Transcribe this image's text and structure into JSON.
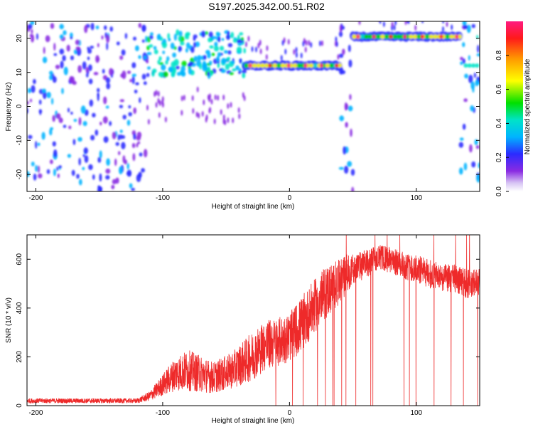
{
  "title": "S197.2025.342.00.51.R02",
  "colors": {
    "snr_line": "#ee2a2a",
    "colormap": [
      "#ffffff",
      "#d7c4f4",
      "#8a2be2",
      "#2b2bff",
      "#00b4ff",
      "#00e3c8",
      "#00e000",
      "#ffff00",
      "#ff9900",
      "#ff1a1a",
      "#ff1a80"
    ]
  },
  "chart_data": [
    {
      "type": "heatmap",
      "title": "S197.2025.342.00.51.R02",
      "xlabel": "Height of straight line (km)",
      "ylabel": "Frequency (Hz)",
      "xlim": [
        -207,
        150
      ],
      "ylim": [
        -25,
        25
      ],
      "xticks": [
        -200,
        -100,
        0,
        100
      ],
      "yticks": [
        20,
        10,
        0,
        -10,
        -20
      ],
      "colorbar": {
        "label": "Normalized spectral amplitude",
        "range": [
          0,
          1
        ],
        "ticks": [
          "0.0",
          "0.2",
          "0.4",
          "0.6",
          "0.8"
        ]
      },
      "bands": [
        {
          "x_start": -207,
          "x_end": -112,
          "pattern": "scattered noise over full frequency range",
          "amplitude": 0.25
        },
        {
          "x_start": -112,
          "x_end": -35,
          "pattern": "spread signal 10-20 Hz",
          "amplitude": 0.35
        },
        {
          "x_start": -35,
          "x_end": 40,
          "pattern": "narrow line near 12 Hz",
          "amplitude": 0.45
        },
        {
          "x_start": 40,
          "x_end": 50,
          "pattern": "scattered noise over full frequency range",
          "amplitude": 0.25
        },
        {
          "x_start": 50,
          "x_end": 135,
          "pattern": "narrow line near 20.5 Hz",
          "amplitude": 0.55
        },
        {
          "x_start": 135,
          "x_end": 150,
          "pattern": "scattered noise with line near 12 Hz",
          "amplitude": 0.3
        }
      ]
    },
    {
      "type": "line",
      "xlabel": "Height of straight line (km)",
      "ylabel": "SNR (10 * v/v)",
      "xlim": [
        -207,
        150
      ],
      "ylim": [
        0,
        700
      ],
      "xticks": [
        -200,
        -100,
        0,
        100
      ],
      "yticks": [
        0,
        200,
        400,
        600
      ],
      "series": [
        {
          "name": "SNR",
          "envelope_x": [
            -207,
            -120,
            -110,
            -90,
            -80,
            -60,
            -45,
            -30,
            -20,
            -10,
            0,
            10,
            20,
            30,
            40,
            45,
            50,
            60,
            70,
            80,
            90,
            100,
            110,
            120,
            130,
            140,
            150
          ],
          "envelope_low": [
            10,
            10,
            20,
            60,
            60,
            50,
            70,
            100,
            140,
            160,
            180,
            220,
            300,
            360,
            420,
            460,
            500,
            520,
            560,
            540,
            520,
            500,
            480,
            470,
            460,
            440,
            440
          ],
          "envelope_high": [
            30,
            30,
            60,
            200,
            230,
            180,
            220,
            300,
            350,
            360,
            380,
            450,
            520,
            580,
            600,
            620,
            620,
            640,
            660,
            650,
            630,
            620,
            600,
            580,
            580,
            560,
            560
          ],
          "peak_max": 700
        }
      ]
    }
  ]
}
